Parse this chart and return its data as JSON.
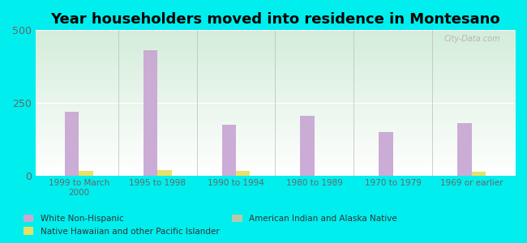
{
  "title": "Year householders moved into residence in Montesano",
  "categories": [
    "1999 to March\n2000",
    "1995 to 1998",
    "1990 to 1994",
    "1980 to 1989",
    "1970 to 1979",
    "1969 or earlier"
  ],
  "series": {
    "White Non-Hispanic": [
      220,
      430,
      175,
      205,
      150,
      180
    ],
    "Native Hawaiian and other Pacific Islander": [
      15,
      18,
      16,
      0,
      0,
      12
    ],
    "American Indian and Alaska Native": [
      0,
      0,
      0,
      0,
      0,
      0
    ]
  },
  "colors": {
    "White Non-Hispanic": "#c9a8d4",
    "Native Hawaiian and other Pacific Islander": "#e8e060",
    "American Indian and Alaska Native": "#b5c9a8"
  },
  "ylim": [
    0,
    500
  ],
  "yticks": [
    0,
    250,
    500
  ],
  "background_color": "#00eeee",
  "bar_width": 0.18,
  "title_fontsize": 13,
  "watermark": "City-Data.com",
  "legend_order": [
    "White Non-Hispanic",
    "American Indian and Alaska Native",
    "Native Hawaiian and other Pacific Islander"
  ]
}
